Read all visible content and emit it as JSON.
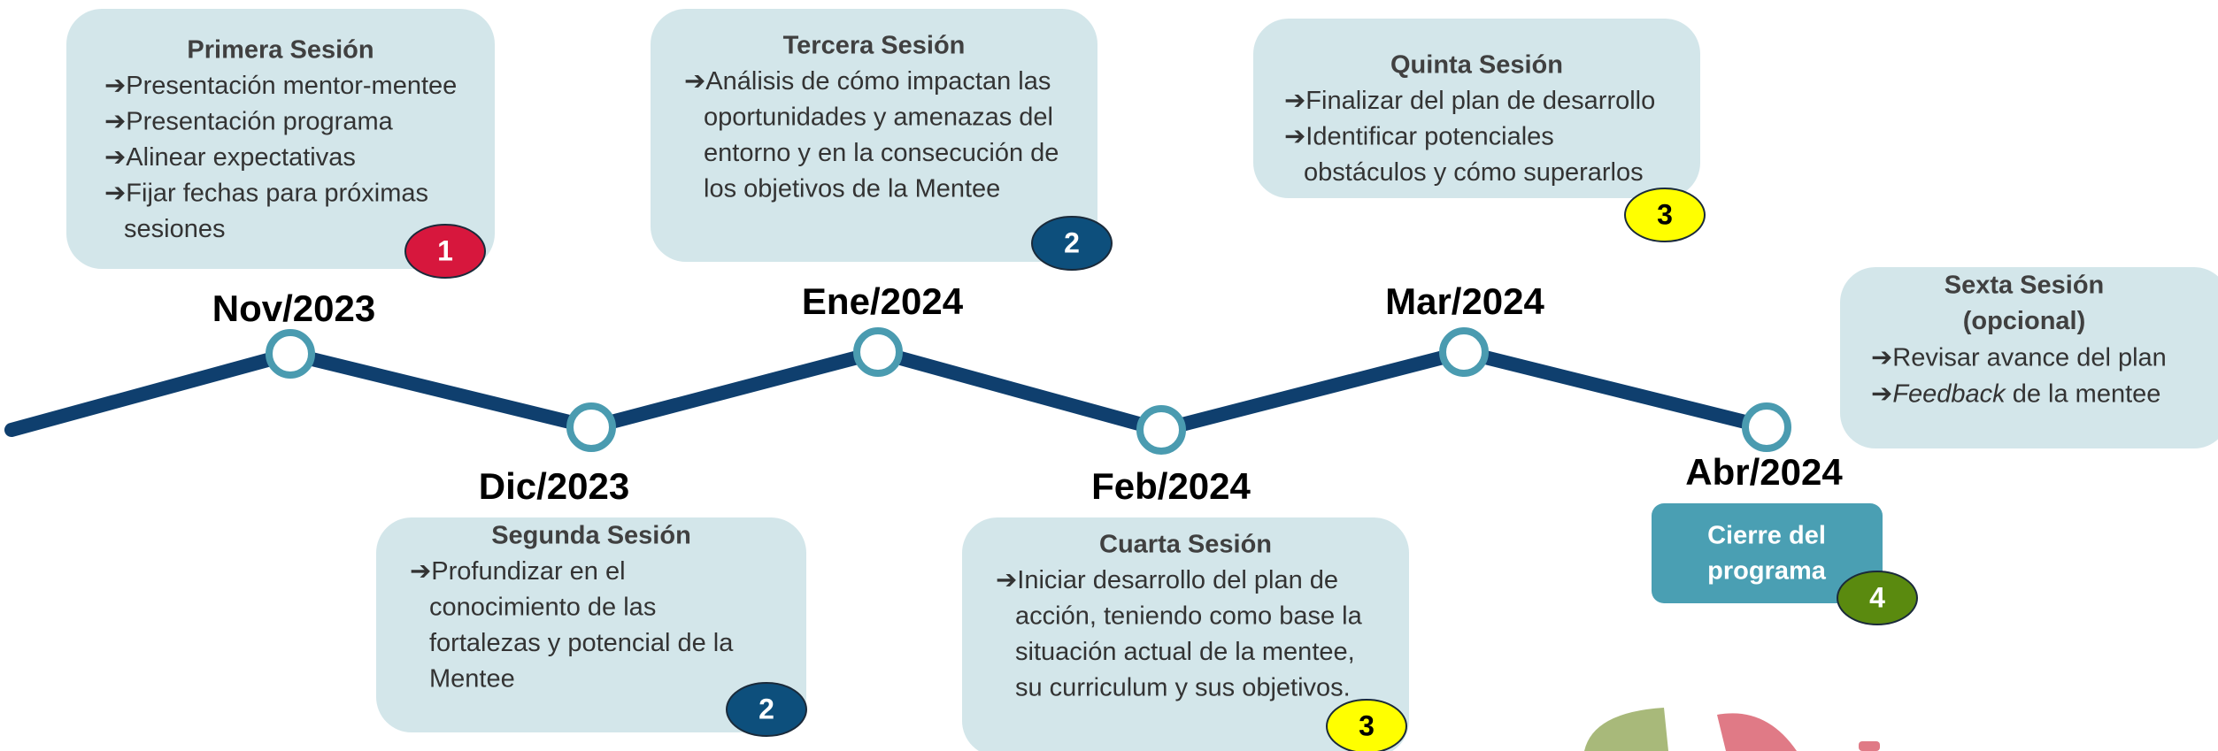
{
  "sessions": [
    {
      "title": [
        "Primera Sesión"
      ],
      "lines": [
        "➔Presentación mentor-mentee",
        "➔Presentación programa",
        "➔Alinear expectativas",
        "➔Fijar fechas para próximas",
        "sesiones"
      ],
      "badge": "1"
    },
    {
      "title": [
        "Segunda Sesión"
      ],
      "lines": [
        "➔Profundizar en el",
        "conocimiento de las",
        "fortalezas y potencial de la",
        "Mentee"
      ],
      "badge": "2"
    },
    {
      "title": [
        "Tercera Sesión"
      ],
      "lines": [
        "➔Análisis de cómo impactan las",
        "oportunidades y amenazas del",
        "entorno y en la consecución de",
        "los objetivos de la Mentee"
      ],
      "badge": "2"
    },
    {
      "title": [
        "Cuarta Sesión"
      ],
      "lines": [
        "➔Iniciar desarrollo del plan de",
        "acción, teniendo como base la",
        "situación actual de la mentee,",
        "su curriculum y sus objetivos."
      ],
      "badge": "3"
    },
    {
      "title": [
        "Quinta Sesión"
      ],
      "lines": [
        "➔Finalizar del plan de desarrollo",
        "➔Identificar potenciales",
        "obstáculos y cómo superarlos"
      ],
      "badge": "3"
    },
    {
      "title": [
        "Sexta Sesión",
        "(opcional)"
      ],
      "lines": [
        "➔Revisar avance del plan",
        {
          "prefix": "➔",
          "em": "Feedback",
          "rest": " de la mentee"
        }
      ]
    }
  ],
  "dates": [
    "Nov/2023",
    "Dic/2023",
    "Ene/2024",
    "Feb/2024",
    "Mar/2024",
    "Abr/2024"
  ],
  "closing": {
    "lines": [
      "Cierre del",
      "programa"
    ],
    "badge": "4"
  }
}
